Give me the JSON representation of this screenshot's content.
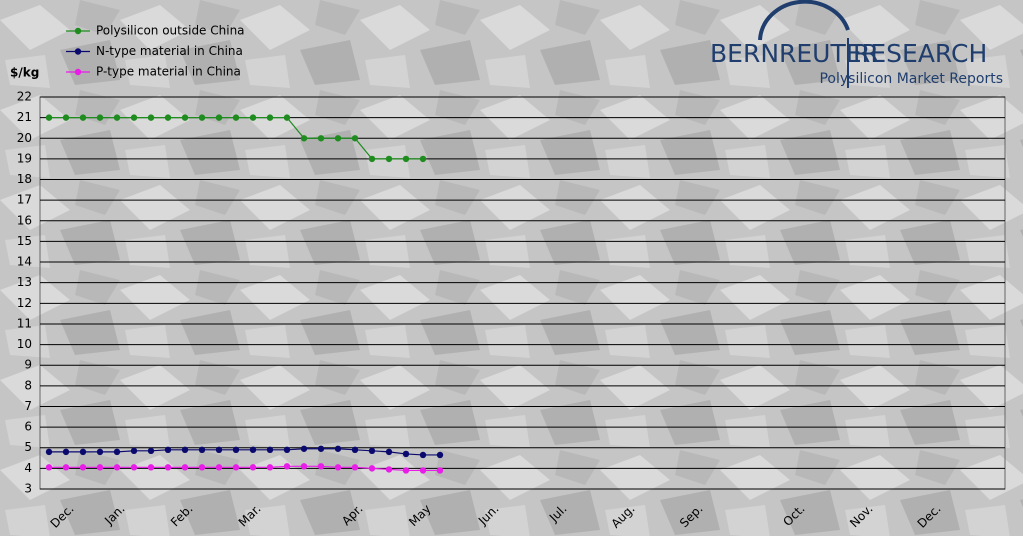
{
  "chart_data": {
    "type": "line",
    "brand": "BERNREUTER",
    "brand2": "RESEARCH",
    "subtitle": "Polysilicon Market Reports",
    "ylabel": "$/kg",
    "categories": [
      null,
      "Dec.",
      null,
      null,
      "Jan.",
      null,
      null,
      null,
      "Feb.",
      null,
      null,
      null,
      "Mar.",
      null,
      null,
      null,
      null,
      null,
      "Apr.",
      null,
      null,
      null,
      "May",
      null,
      null,
      null,
      "Jun.",
      null,
      null,
      null,
      "Jul.",
      null,
      null,
      null,
      "Aug.",
      null,
      null,
      null,
      "Sep.",
      null,
      null,
      null,
      null,
      null,
      "Oct.",
      null,
      null,
      null,
      "Nov.",
      null,
      null,
      null,
      "Dec.",
      null,
      null,
      null,
      null
    ],
    "series": [
      {
        "name": "Polysilicon outside China",
        "color": "#1e8c1e",
        "values": [
          21,
          21,
          21,
          21,
          21,
          21,
          21,
          21,
          21,
          21,
          21,
          21,
          21,
          21,
          21,
          20,
          20,
          20,
          20,
          19,
          19,
          19,
          19,
          null,
          null,
          null,
          null,
          null,
          null,
          null,
          null,
          null,
          null,
          null,
          null,
          null,
          null,
          null,
          null,
          null,
          null,
          null,
          null,
          null,
          null,
          null,
          null,
          null,
          null,
          null,
          null,
          null,
          null,
          null,
          null,
          null,
          null
        ]
      },
      {
        "name": "N-type material in China",
        "color": "#0a0a6e",
        "values": [
          4.8,
          4.8,
          4.8,
          4.8,
          4.8,
          4.85,
          4.85,
          4.9,
          4.9,
          4.9,
          4.9,
          4.9,
          4.9,
          4.9,
          4.9,
          4.95,
          4.95,
          4.95,
          4.9,
          4.85,
          4.8,
          4.7,
          4.65,
          4.65,
          null,
          null,
          null,
          null,
          null,
          null,
          null,
          null,
          null,
          null,
          null,
          null,
          null,
          null,
          null,
          null,
          null,
          null,
          null,
          null,
          null,
          null,
          null,
          null,
          null,
          null,
          null,
          null,
          null,
          null,
          null,
          null,
          null
        ]
      },
      {
        "name": "P-type material in China",
        "color": "#e81ee8",
        "values": [
          4.05,
          4.05,
          4.05,
          4.05,
          4.05,
          4.05,
          4.05,
          4.05,
          4.05,
          4.05,
          4.05,
          4.05,
          4.05,
          4.05,
          4.1,
          4.1,
          4.1,
          4.05,
          4.05,
          4.0,
          3.95,
          3.9,
          3.9,
          3.9,
          null,
          null,
          null,
          null,
          null,
          null,
          null,
          null,
          null,
          null,
          null,
          null,
          null,
          null,
          null,
          null,
          null,
          null,
          null,
          null,
          null,
          null,
          null,
          null,
          null,
          null,
          null,
          null,
          null,
          null,
          null,
          null,
          null
        ]
      }
    ],
    "ylim": [
      3,
      22
    ],
    "yticks": [
      3,
      4,
      5,
      6,
      7,
      8,
      9,
      10,
      11,
      12,
      13,
      14,
      15,
      16,
      17,
      18,
      19,
      20,
      21,
      22
    ],
    "grid": true
  }
}
